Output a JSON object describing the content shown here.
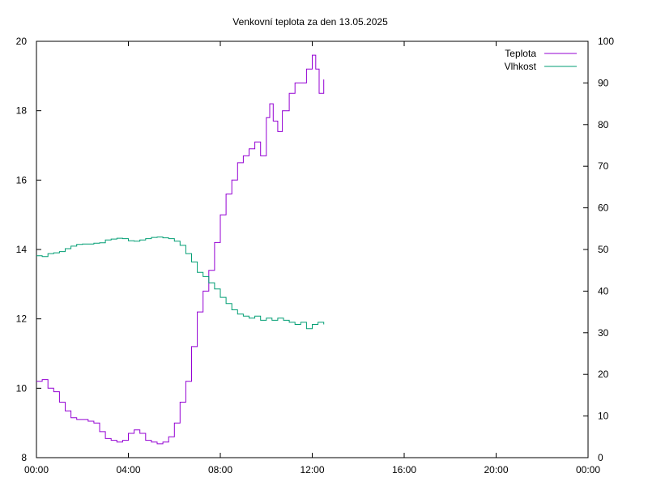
{
  "chart_data": {
    "type": "line",
    "title": "Venkovní teplota za den 13.05.2025",
    "x_ticks": [
      "00:00",
      "04:00",
      "08:00",
      "12:00",
      "16:00",
      "20:00",
      "00:00"
    ],
    "x_range_hours": [
      0,
      24
    ],
    "y_left": {
      "range": [
        8,
        20
      ],
      "ticks": [
        8,
        10,
        12,
        14,
        16,
        18,
        20
      ]
    },
    "y_right": {
      "range": [
        0,
        100
      ],
      "ticks": [
        0,
        10,
        20,
        30,
        40,
        50,
        60,
        70,
        80,
        90,
        100
      ]
    },
    "grid": false,
    "legend_position": "top-right",
    "series": [
      {
        "name": "Teplota",
        "axis": "left",
        "color": "#9400D3",
        "x": [
          0,
          0.25,
          0.5,
          0.75,
          1,
          1.25,
          1.5,
          1.75,
          2,
          2.25,
          2.5,
          2.75,
          3,
          3.25,
          3.5,
          3.75,
          4,
          4.25,
          4.5,
          4.75,
          5,
          5.25,
          5.5,
          5.75,
          6,
          6.25,
          6.5,
          6.75,
          7,
          7.25,
          7.5,
          7.75,
          8,
          8.25,
          8.5,
          8.75,
          9,
          9.25,
          9.5,
          9.75,
          10,
          10.15,
          10.3,
          10.5,
          10.7,
          11,
          11.25,
          11.5,
          11.75,
          12,
          12.15,
          12.3,
          12.5
        ],
        "y": [
          10.2,
          10.25,
          10.0,
          9.9,
          9.6,
          9.35,
          9.15,
          9.1,
          9.1,
          9.05,
          9.0,
          8.75,
          8.55,
          8.5,
          8.45,
          8.5,
          8.7,
          8.8,
          8.7,
          8.5,
          8.45,
          8.4,
          8.45,
          8.6,
          9.0,
          9.6,
          10.2,
          11.2,
          12.2,
          12.8,
          13.4,
          14.2,
          15.0,
          15.6,
          16.0,
          16.5,
          16.7,
          16.9,
          17.1,
          16.7,
          17.8,
          18.2,
          17.7,
          17.4,
          18.0,
          18.5,
          18.8,
          18.8,
          19.2,
          19.6,
          19.2,
          18.5,
          18.9
        ]
      },
      {
        "name": "Vlhkost",
        "axis": "right",
        "color": "#009E73",
        "x": [
          0,
          0.25,
          0.5,
          0.75,
          1,
          1.25,
          1.5,
          1.75,
          2,
          2.25,
          2.5,
          2.75,
          3,
          3.25,
          3.5,
          3.75,
          4,
          4.25,
          4.5,
          4.75,
          5,
          5.25,
          5.5,
          5.75,
          6,
          6.25,
          6.5,
          6.75,
          7,
          7.25,
          7.5,
          7.75,
          8,
          8.25,
          8.5,
          8.75,
          9,
          9.25,
          9.5,
          9.75,
          10,
          10.25,
          10.5,
          10.75,
          11,
          11.25,
          11.5,
          11.75,
          12,
          12.25,
          12.5
        ],
        "y": [
          48.5,
          48.3,
          49.0,
          49.2,
          49.5,
          50.2,
          50.8,
          51.2,
          51.3,
          51.3,
          51.5,
          51.6,
          52.3,
          52.5,
          52.7,
          52.6,
          52.1,
          52.0,
          52.3,
          52.6,
          52.9,
          53.0,
          52.8,
          52.6,
          52.0,
          51.0,
          49.0,
          47.0,
          44.5,
          43.5,
          42.0,
          40.5,
          38.5,
          37.0,
          35.5,
          34.5,
          34.0,
          33.5,
          34.0,
          33.0,
          33.5,
          33.0,
          33.5,
          33.0,
          32.5,
          32.0,
          32.5,
          31.0,
          32.0,
          32.5,
          32.0
        ]
      }
    ]
  }
}
